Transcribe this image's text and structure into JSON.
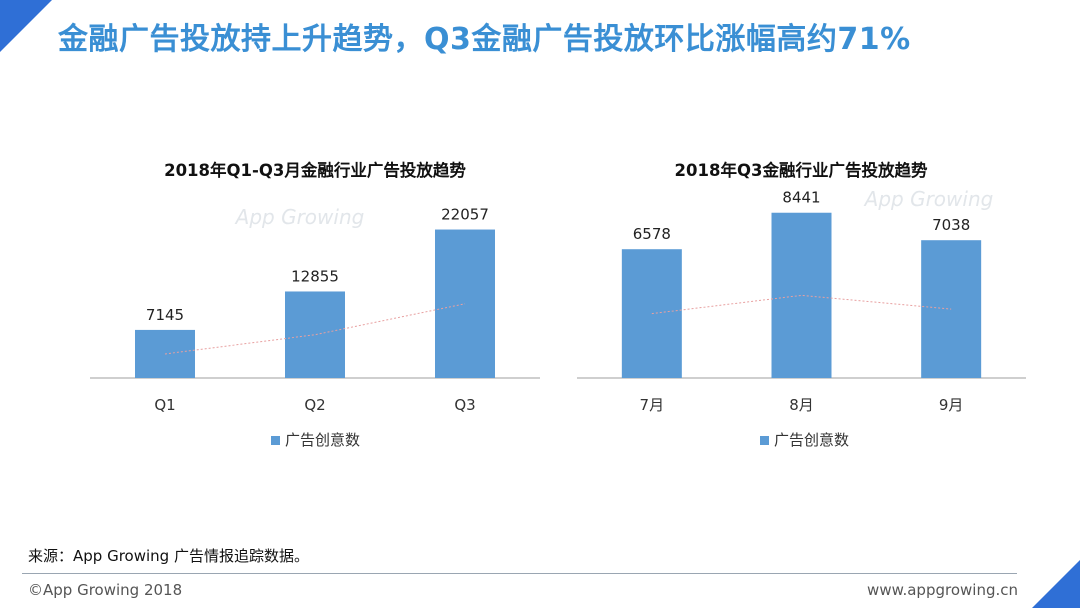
{
  "headline": "金融广告投放持上升趋势，Q3金融广告投放环比涨幅高约71%",
  "colors": {
    "accent": "#2f6fd6",
    "headline": "#3a8fd4",
    "bar": "#5b9bd5",
    "trend": "#e8a0a0"
  },
  "watermark": "App Growing",
  "chart_data": [
    {
      "type": "bar",
      "title": "2018年Q1-Q3月金融行业广告投放趋势",
      "categories": [
        "Q1",
        "Q2",
        "Q3"
      ],
      "series": [
        {
          "name": "广告创意数",
          "values": [
            7145,
            12855,
            22057
          ]
        }
      ],
      "data_labels": [
        "7145",
        "12855",
        "22057"
      ],
      "ylim": [
        0,
        26000
      ],
      "grid": false,
      "legend": "bottom",
      "trendline": true
    },
    {
      "type": "bar",
      "title": "2018年Q3金融行业广告投放趋势",
      "categories": [
        "7月",
        "8月",
        "9月"
      ],
      "series": [
        {
          "name": "广告创意数",
          "values": [
            6578,
            8441,
            7038
          ]
        }
      ],
      "data_labels": [
        "6578",
        "8441",
        "7038"
      ],
      "ylim": [
        0,
        9500
      ],
      "grid": false,
      "legend": "bottom",
      "trendline": true
    }
  ],
  "source_note": "来源：App Growing 广告情报追踪数据。",
  "copyright": "©App Growing 2018",
  "website": "www.appgrowing.cn"
}
